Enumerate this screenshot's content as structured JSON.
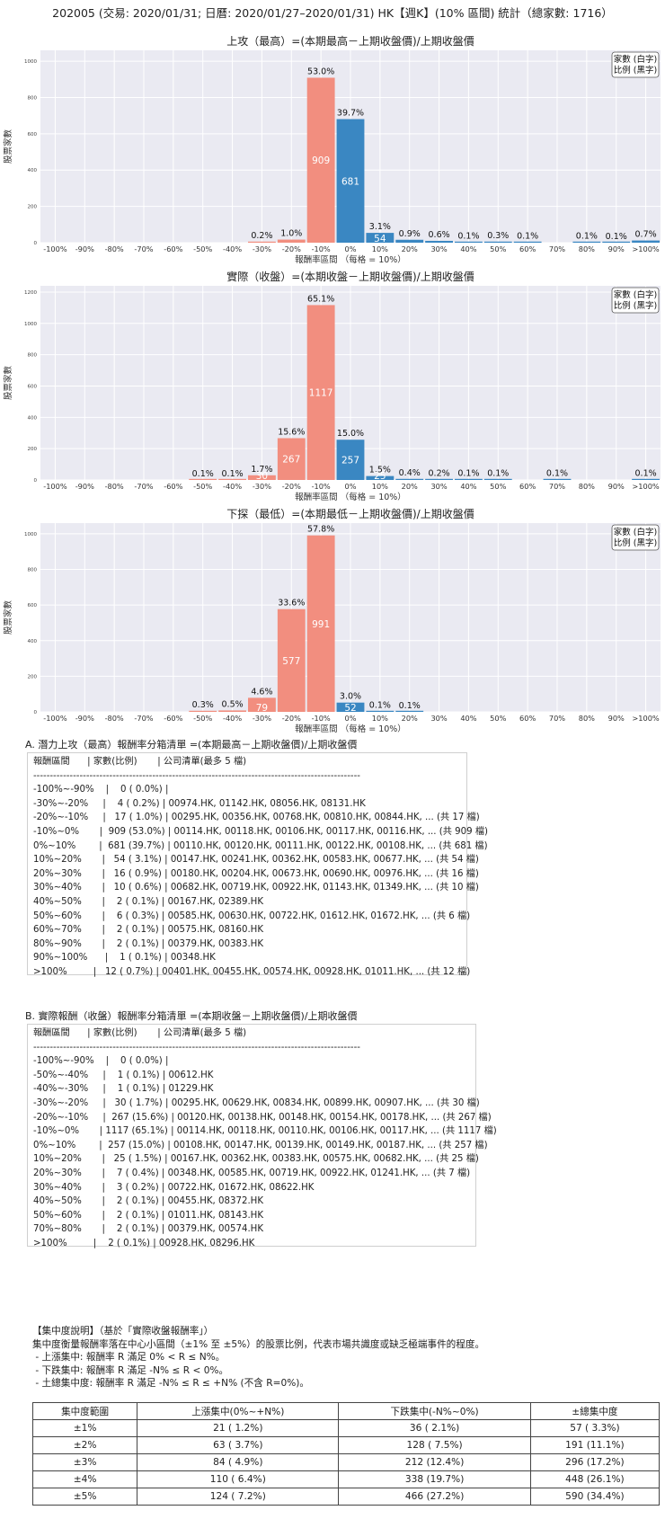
{
  "title": "202005 (交易: 2020/01/31; 日曆: 2020/01/27–2020/01/31) HK【週K】(10% 區間) 統計（總家數: 1716）",
  "chart_data": [
    {
      "type": "bar",
      "title": "上攻（最高）=(本期最高－上期收盤價)/上期收盤價",
      "xlabel": "報酬率區間 （每格 = 10%）",
      "ylabel": "股票家數",
      "legend": [
        "家數 (白字)",
        "比例 (黑字)"
      ],
      "legend_position": "top-right",
      "categories": [
        "-100%",
        "-90%",
        "-80%",
        "-70%",
        "-60%",
        "-50%",
        "-40%",
        "-30%",
        "-20%",
        "-10%",
        "0%",
        "10%",
        "20%",
        "30%",
        "40%",
        "50%",
        "60%",
        "70%",
        "80%",
        "90%",
        ">100%"
      ],
      "values": [
        0,
        0,
        0,
        0,
        0,
        0,
        0,
        4,
        17,
        909,
        681,
        54,
        16,
        10,
        2,
        6,
        2,
        0,
        2,
        1,
        12
      ],
      "pct_labels": [
        "",
        "",
        "",
        "",
        "",
        "",
        "",
        "0.2%",
        "1.0%",
        "53.0%",
        "39.7%",
        "3.1%",
        "0.9%",
        "0.6%",
        "0.1%",
        "0.3%",
        "0.1%",
        "",
        "0.1%",
        "0.1%",
        "0.7%"
      ],
      "count_labels": [
        "",
        "",
        "",
        "",
        "",
        "",
        "",
        "",
        "",
        "909",
        "681",
        "54",
        "",
        "",
        "",
        "",
        "",
        "",
        "",
        "",
        ""
      ],
      "yticks": [
        0,
        200,
        400,
        600,
        800,
        1000
      ],
      "ylim": [
        0,
        1060
      ],
      "colors": {
        "negative": "#f28e7f",
        "positive": "#3a87c2"
      }
    },
    {
      "type": "bar",
      "title": "實際（收盤）=(本期收盤－上期收盤價)/上期收盤價",
      "xlabel": "報酬率區間 （每格 = 10%）",
      "ylabel": "股票家數",
      "legend": [
        "家數 (白字)",
        "比例 (黑字)"
      ],
      "legend_position": "top-right",
      "categories": [
        "-100%",
        "-90%",
        "-80%",
        "-70%",
        "-60%",
        "-50%",
        "-40%",
        "-30%",
        "-20%",
        "-10%",
        "0%",
        "10%",
        "20%",
        "30%",
        "40%",
        "50%",
        "60%",
        "70%",
        "80%",
        "90%",
        ">100%"
      ],
      "values": [
        0,
        0,
        0,
        0,
        0,
        1,
        1,
        30,
        267,
        1117,
        257,
        25,
        7,
        3,
        2,
        2,
        0,
        2,
        0,
        0,
        2
      ],
      "pct_labels": [
        "",
        "",
        "",
        "",
        "",
        "0.1%",
        "0.1%",
        "1.7%",
        "15.6%",
        "65.1%",
        "15.0%",
        "1.5%",
        "0.4%",
        "0.2%",
        "0.1%",
        "0.1%",
        "",
        "0.1%",
        "",
        "",
        "0.1%"
      ],
      "count_labels": [
        "",
        "",
        "",
        "",
        "",
        "",
        "",
        "30",
        "267",
        "1117",
        "257",
        "25",
        "",
        "",
        "",
        "",
        "",
        "",
        "",
        "",
        ""
      ],
      "yticks": [
        0,
        200,
        400,
        600,
        800,
        1000,
        1200
      ],
      "ylim": [
        0,
        1240
      ],
      "colors": {
        "negative": "#f28e7f",
        "positive": "#3a87c2"
      }
    },
    {
      "type": "bar",
      "title": "下探（最低）=(本期最低－上期收盤價)/上期收盤價",
      "xlabel": "報酬率區間 （每格 = 10%）",
      "ylabel": "股票家數",
      "legend": [
        "家數 (白字)",
        "比例 (黑字)"
      ],
      "legend_position": "top-right",
      "categories": [
        "-100%",
        "-90%",
        "-80%",
        "-70%",
        "-60%",
        "-50%",
        "-40%",
        "-30%",
        "-20%",
        "-10%",
        "0%",
        "10%",
        "20%",
        "30%",
        "40%",
        "50%",
        "60%",
        "70%",
        "80%",
        "90%",
        ">100%"
      ],
      "values": [
        0,
        0,
        0,
        0,
        0,
        6,
        8,
        79,
        577,
        991,
        52,
        2,
        1,
        0,
        0,
        0,
        0,
        0,
        0,
        0,
        0
      ],
      "pct_labels": [
        "",
        "",
        "",
        "",
        "",
        "0.3%",
        "0.5%",
        "4.6%",
        "33.6%",
        "57.8%",
        "3.0%",
        "0.1%",
        "0.1%",
        "",
        "",
        "",
        "",
        "",
        "",
        "",
        ""
      ],
      "count_labels": [
        "",
        "",
        "",
        "",
        "",
        "",
        "",
        "79",
        "577",
        "991",
        "52",
        "",
        "",
        "",
        "",
        "",
        "",
        "",
        "",
        "",
        ""
      ],
      "yticks": [
        0,
        200,
        400,
        600,
        800,
        1000
      ],
      "ylim": [
        0,
        1060
      ],
      "colors": {
        "negative": "#f28e7f",
        "positive": "#3a87c2"
      }
    }
  ],
  "list_a": {
    "heading": "A. 潛力上攻（最高）報酬率分箱清單 =(本期最高－上期收盤價)/上期收盤價",
    "lines": [
      "報酬區間      | 家數(比例)       | 公司清單(最多 5 檔)",
      "---------------------------------------------------------------------------------------------------",
      "-100%~-90%    |    0 ( 0.0%) |",
      "-30%~-20%     |    4 ( 0.2%) | 00974.HK, 01142.HK, 08056.HK, 08131.HK",
      "-20%~-10%     |   17 ( 1.0%) | 00295.HK, 00356.HK, 00768.HK, 00810.HK, 00844.HK, ... (共 17 檔)",
      "-10%~0%       |  909 (53.0%) | 00114.HK, 00118.HK, 00106.HK, 00117.HK, 00116.HK, ... (共 909 檔)",
      "0%~10%        |  681 (39.7%) | 00110.HK, 00120.HK, 00111.HK, 00122.HK, 00108.HK, ... (共 681 檔)",
      "10%~20%       |   54 ( 3.1%) | 00147.HK, 00241.HK, 00362.HK, 00583.HK, 00677.HK, ... (共 54 檔)",
      "20%~30%       |   16 ( 0.9%) | 00180.HK, 00204.HK, 00673.HK, 00690.HK, 00976.HK, ... (共 16 檔)",
      "30%~40%       |   10 ( 0.6%) | 00682.HK, 00719.HK, 00922.HK, 01143.HK, 01349.HK, ... (共 10 檔)",
      "40%~50%       |    2 ( 0.1%) | 00167.HK, 02389.HK",
      "50%~60%       |    6 ( 0.3%) | 00585.HK, 00630.HK, 00722.HK, 01612.HK, 01672.HK, ... (共 6 檔)",
      "60%~70%       |    2 ( 0.1%) | 00575.HK, 08160.HK",
      "80%~90%       |    2 ( 0.1%) | 00379.HK, 00383.HK",
      "90%~100%      |    1 ( 0.1%) | 00348.HK",
      ">100%         |   12 ( 0.7%) | 00401.HK, 00455.HK, 00574.HK, 00928.HK, 01011.HK, ... (共 12 檔)"
    ]
  },
  "list_b": {
    "heading": "B. 實際報酬（收盤）報酬率分箱清單 =(本期收盤－上期收盤價)/上期收盤價",
    "lines": [
      "報酬區間      | 家數(比例)       | 公司清單(最多 5 檔)",
      "---------------------------------------------------------------------------------------------------",
      "-100%~-90%    |    0 ( 0.0%) |",
      "-50%~-40%     |    1 ( 0.1%) | 00612.HK",
      "-40%~-30%     |    1 ( 0.1%) | 01229.HK",
      "-30%~-20%     |   30 ( 1.7%) | 00295.HK, 00629.HK, 00834.HK, 00899.HK, 00907.HK, ... (共 30 檔)",
      "-20%~-10%     |  267 (15.6%) | 00120.HK, 00138.HK, 00148.HK, 00154.HK, 00178.HK, ... (共 267 檔)",
      "-10%~0%       | 1117 (65.1%) | 00114.HK, 00118.HK, 00110.HK, 00106.HK, 00117.HK, ... (共 1117 檔)",
      "0%~10%        |  257 (15.0%) | 00108.HK, 00147.HK, 00139.HK, 00149.HK, 00187.HK, ... (共 257 檔)",
      "10%~20%       |   25 ( 1.5%) | 00167.HK, 00362.HK, 00383.HK, 00575.HK, 00682.HK, ... (共 25 檔)",
      "20%~30%       |    7 ( 0.4%) | 00348.HK, 00585.HK, 00719.HK, 00922.HK, 01241.HK, ... (共 7 檔)",
      "30%~40%       |    3 ( 0.2%) | 00722.HK, 01672.HK, 08622.HK",
      "40%~50%       |    2 ( 0.1%) | 00455.HK, 08372.HK",
      "50%~60%       |    2 ( 0.1%) | 01011.HK, 08143.HK",
      "70%~80%       |    2 ( 0.1%) | 00379.HK, 00574.HK",
      ">100%         |    2 ( 0.1%) | 00928.HK, 08296.HK"
    ]
  },
  "concentration": {
    "lines": [
      "【集中度說明】（基於「實際收盤報酬率」）",
      "集中度衡量報酬率落在中心小區間（±1% 至 ±5%）的股票比例，代表市場共識度或缺乏極端事件的程度。",
      " - 上漲集中: 報酬率 R 滿足 0% < R ≤ N%。",
      " - 下跌集中: 報酬率 R 滿足 -N% ≤ R < 0%。",
      " - 土總集中度: 報酬率 R 滿足 -N% ≤ R ≤ +N% (不含 R=0%)。"
    ],
    "headers": [
      "集中度範圍",
      "上漲集中(0%~+N%)",
      "下跌集中(-N%~0%)",
      "±總集中度"
    ],
    "rows": [
      [
        "±1%",
        "21 ( 1.2%)",
        "36 ( 2.1%)",
        "57 ( 3.3%)"
      ],
      [
        "±2%",
        "63 ( 3.7%)",
        "128 ( 7.5%)",
        "191 (11.1%)"
      ],
      [
        "±3%",
        "84 ( 4.9%)",
        "212 (12.4%)",
        "296 (17.2%)"
      ],
      [
        "±4%",
        "110 ( 6.4%)",
        "338 (19.7%)",
        "448 (26.1%)"
      ],
      [
        "±5%",
        "124 ( 7.2%)",
        "466 (27.2%)",
        "590 (34.4%)"
      ]
    ]
  }
}
